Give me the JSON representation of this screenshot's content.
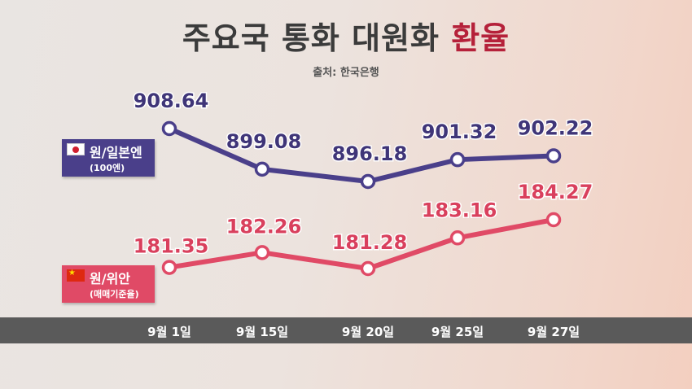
{
  "header": {
    "title_main": "주요국 통화 대원화",
    "title_accent": "환율",
    "source": "출처: 한국은행"
  },
  "legend": {
    "jpy": {
      "name": "원/일본엔",
      "sub": "(100엔)",
      "icon": "japan-flag-icon"
    },
    "cny": {
      "name": "원/위안",
      "sub": "(매매기준율)",
      "icon": "china-flag-icon"
    }
  },
  "colors": {
    "jpy_line": "#4a3f8a",
    "cny_line": "#e04a66",
    "jpy_label": "#3f3578",
    "cny_label": "#d9405d",
    "title_accent": "#b5213a"
  },
  "chart_data": {
    "type": "line",
    "categories": [
      "9월 1일",
      "9월 15일",
      "9월 20일",
      "9월 25일",
      "9월 27일"
    ],
    "series": [
      {
        "name": "원/일본엔",
        "values": [
          908.64,
          899.08,
          896.18,
          901.32,
          902.22
        ]
      },
      {
        "name": "원/위안",
        "values": [
          181.35,
          182.26,
          181.28,
          183.16,
          184.27
        ]
      }
    ]
  }
}
